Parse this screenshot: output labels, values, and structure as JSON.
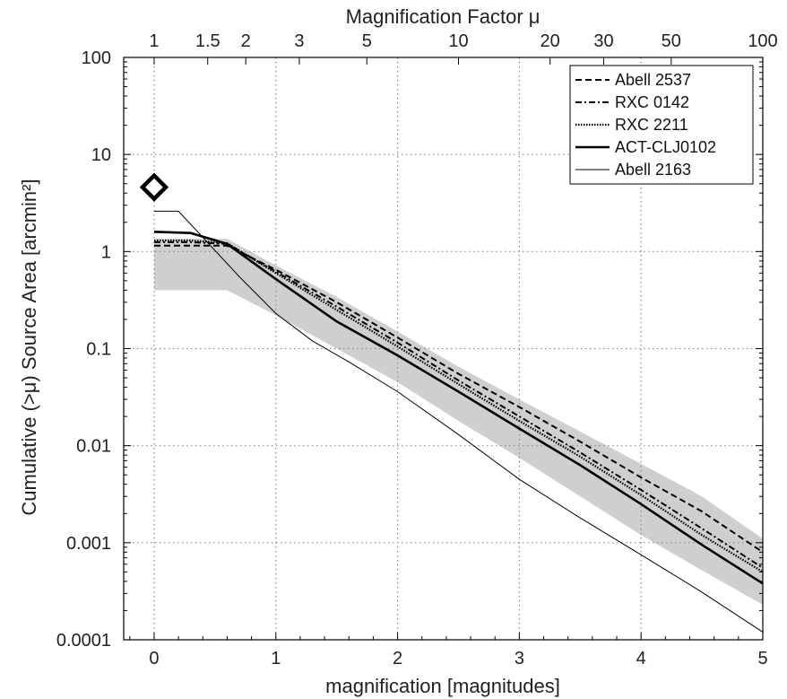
{
  "chart_data": {
    "type": "line",
    "top_axis_title": "Magnification Factor μ",
    "top_axis": {
      "title": "Magnification Factor μ",
      "ticks": [
        1,
        1.5,
        2,
        3,
        5,
        10,
        20,
        30,
        50,
        100
      ],
      "tick_labels": [
        "1",
        "1.5",
        "2",
        "3",
        "5",
        "10",
        "20",
        "30",
        "50",
        "100"
      ]
    },
    "xlabel": "magnification [magnitudes]",
    "ylabel": "Cumulative (>μ) Source Area [arcmin²]",
    "xlim": [
      -0.25,
      5
    ],
    "ylim": [
      0.0001,
      100
    ],
    "yscale": "log",
    "x_ticks": [
      0,
      1,
      2,
      3,
      4,
      5
    ],
    "x_tick_labels": [
      "0",
      "1",
      "2",
      "3",
      "4",
      "5"
    ],
    "y_ticks": [
      0.0001,
      0.001,
      0.01,
      0.1,
      1,
      10,
      100
    ],
    "y_tick_labels": [
      "0.0001",
      "0.001",
      "0.01",
      "0.1",
      "1",
      "10",
      "100"
    ],
    "grid": true,
    "legend_position": "top-right",
    "series": [
      {
        "name": "Abell 2537",
        "style": "dashed",
        "x": [
          0,
          0.3,
          0.6,
          1.0,
          1.5,
          2.0,
          2.5,
          3.0,
          3.5,
          4.0,
          4.5,
          5.0
        ],
        "y": [
          1.15,
          1.15,
          1.15,
          0.65,
          0.3,
          0.13,
          0.055,
          0.025,
          0.011,
          0.0047,
          0.0021,
          0.0008
        ]
      },
      {
        "name": "RXC 0142",
        "style": "dashdot",
        "x": [
          0,
          0.3,
          0.6,
          1.0,
          1.5,
          2.0,
          2.5,
          3.0,
          3.5,
          4.0,
          4.5,
          5.0
        ],
        "y": [
          1.25,
          1.25,
          1.2,
          0.62,
          0.27,
          0.115,
          0.047,
          0.02,
          0.0085,
          0.0035,
          0.0014,
          0.00055
        ]
      },
      {
        "name": "RXC 2211",
        "style": "dotted",
        "x": [
          0,
          0.3,
          0.6,
          1.0,
          1.5,
          2.0,
          2.5,
          3.0,
          3.5,
          4.0,
          4.5,
          5.0
        ],
        "y": [
          1.3,
          1.3,
          1.22,
          0.6,
          0.25,
          0.105,
          0.043,
          0.018,
          0.0077,
          0.0031,
          0.0012,
          0.0005
        ]
      },
      {
        "name": "ACT-CLJ0102",
        "style": "solid-thick",
        "x": [
          0,
          0.3,
          0.6,
          1.0,
          1.5,
          2.0,
          2.5,
          3.0,
          3.5,
          4.0,
          4.5,
          5.0
        ],
        "y": [
          1.6,
          1.55,
          1.2,
          0.52,
          0.19,
          0.085,
          0.036,
          0.015,
          0.0063,
          0.0025,
          0.00095,
          0.00038
        ]
      },
      {
        "name": "Abell 2163",
        "style": "solid-thin",
        "x": [
          0,
          0.2,
          0.4,
          0.7,
          1.0,
          1.3,
          1.6,
          2.0,
          2.5,
          3.0,
          3.5,
          4.0,
          4.5,
          5.0
        ],
        "y": [
          2.6,
          2.6,
          1.4,
          0.55,
          0.23,
          0.12,
          0.073,
          0.036,
          0.013,
          0.0045,
          0.0018,
          0.00075,
          0.00031,
          0.00012
        ]
      }
    ],
    "shaded_band": {
      "x": [
        0,
        0.6,
        1.0,
        1.5,
        2.0,
        2.5,
        3.0,
        3.5,
        4.0,
        4.5,
        5.0
      ],
      "upper": [
        1.35,
        1.35,
        0.72,
        0.34,
        0.15,
        0.065,
        0.03,
        0.014,
        0.0065,
        0.003,
        0.0011
      ],
      "lower": [
        0.4,
        0.4,
        0.22,
        0.1,
        0.045,
        0.018,
        0.0075,
        0.003,
        0.0012,
        0.00052,
        0.00023
      ]
    },
    "marker": {
      "shape": "diamond",
      "x": 0,
      "y": 4.6
    }
  }
}
